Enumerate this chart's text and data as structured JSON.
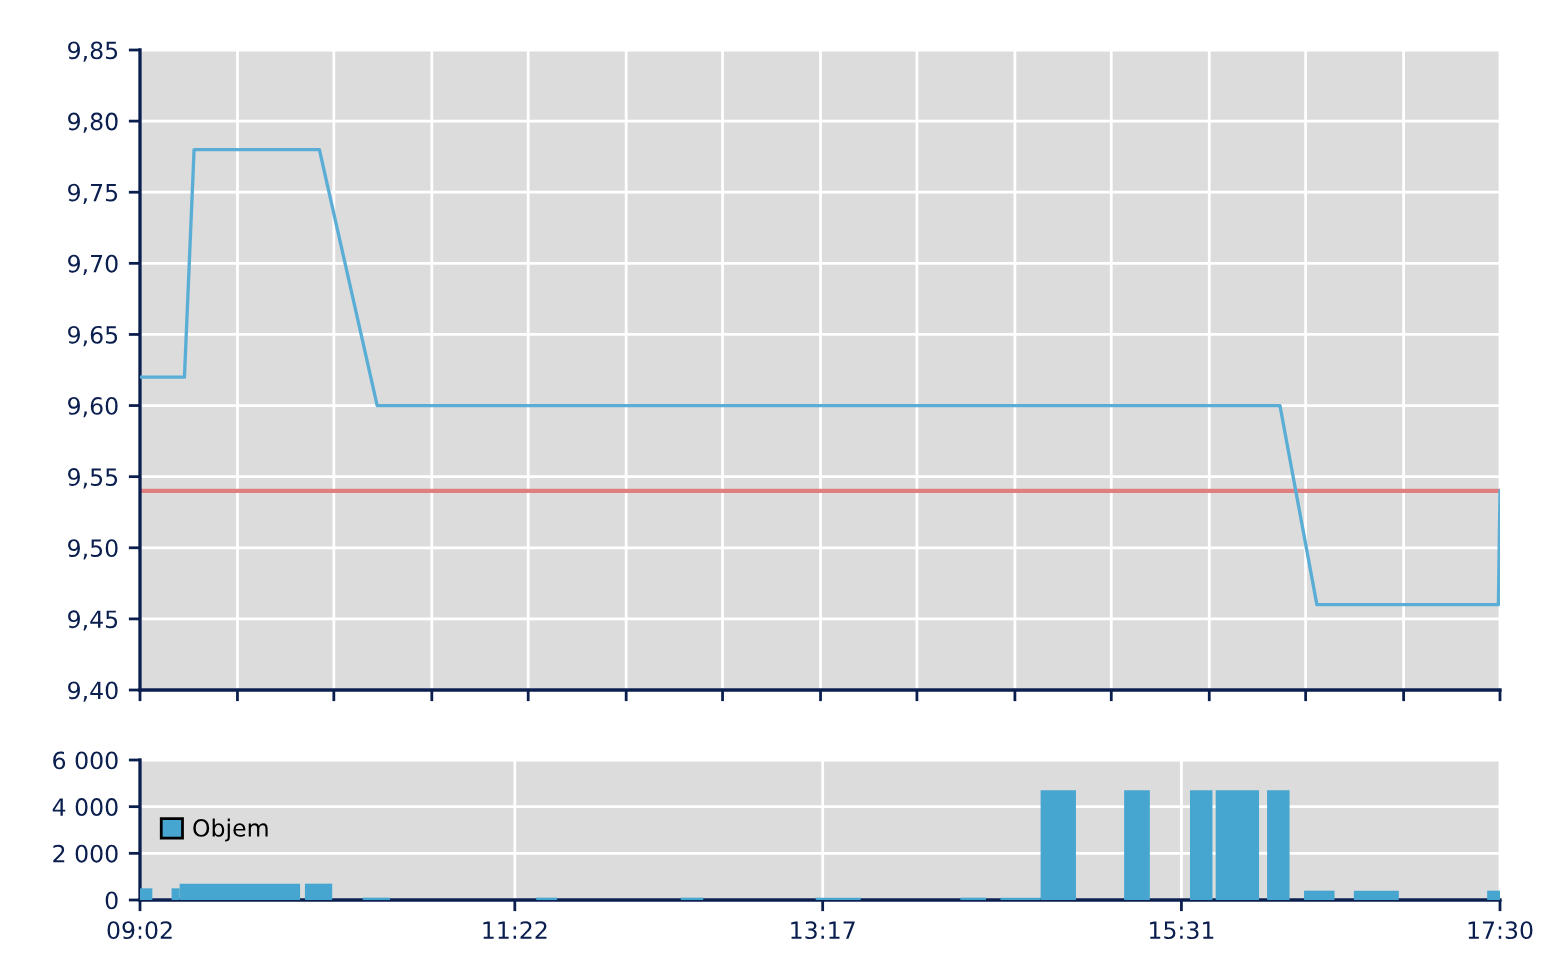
{
  "chart_data": [
    {
      "type": "line",
      "x": [
        9.0333,
        9.31,
        9.37,
        10.15,
        10.51,
        16.13,
        16.36,
        17.49,
        17.5
      ],
      "series": [
        {
          "color": "#5aaed6",
          "values": [
            9.62,
            9.62,
            9.78,
            9.78,
            9.6,
            9.6,
            9.46,
            9.46,
            9.54
          ]
        }
      ],
      "xlim": [
        9.0333,
        17.5
      ],
      "xticks": [
        {
          "value": 9.0333,
          "label": null
        },
        {
          "value": 9.64,
          "label": null
        },
        {
          "value": 10.24,
          "label": null
        },
        {
          "value": 10.85,
          "label": null
        },
        {
          "value": 11.45,
          "label": null
        },
        {
          "value": 12.06,
          "label": null
        },
        {
          "value": 12.66,
          "label": null
        },
        {
          "value": 13.27,
          "label": null
        },
        {
          "value": 13.87,
          "label": null
        },
        {
          "value": 14.48,
          "label": null
        },
        {
          "value": 15.08,
          "label": null
        },
        {
          "value": 15.69,
          "label": null
        },
        {
          "value": 16.29,
          "label": null
        },
        {
          "value": 16.9,
          "label": null
        },
        {
          "value": 17.5,
          "label": null
        }
      ],
      "ylim": [
        9.4,
        9.85
      ],
      "yticks": [
        {
          "value": 9.4,
          "label": "9,40"
        },
        {
          "value": 9.45,
          "label": "9,45"
        },
        {
          "value": 9.5,
          "label": "9,50"
        },
        {
          "value": 9.55,
          "label": "9,55"
        },
        {
          "value": 9.6,
          "label": "9,60"
        },
        {
          "value": 9.65,
          "label": "9,65"
        },
        {
          "value": 9.7,
          "label": "9,70"
        },
        {
          "value": 9.75,
          "label": "9,75"
        },
        {
          "value": 9.8,
          "label": "9,80"
        },
        {
          "value": 9.85,
          "label": "9,85"
        }
      ],
      "grid": true,
      "tick_labels": "y",
      "ref_lines": [
        {
          "axis": "y",
          "value": 9.54,
          "color": "#e07f7f"
        }
      ]
    },
    {
      "type": "histogram",
      "bins": [
        9.0333,
        9.11,
        9.23,
        9.28,
        10.03,
        10.06,
        10.23,
        10.42,
        10.59,
        11.5,
        11.63,
        12.4,
        12.54,
        13.24,
        13.52,
        14.14,
        14.3,
        14.39,
        14.64,
        14.86,
        15.16,
        15.32,
        15.57,
        15.71,
        15.73,
        16.0,
        16.05,
        16.19,
        16.28,
        16.47,
        16.59,
        16.87,
        17.42,
        17.5
      ],
      "series": [
        {
          "name": "Objem",
          "color": "#46a6d0",
          "values": [
            500,
            null,
            500,
            700,
            null,
            700,
            null,
            100,
            null,
            100,
            null,
            100,
            null,
            100,
            null,
            100,
            null,
            100,
            4700,
            null,
            4700,
            null,
            4700,
            null,
            4700,
            null,
            4700,
            null,
            400,
            null,
            400,
            null,
            400
          ]
        }
      ],
      "xlim": [
        9.0333,
        17.5
      ],
      "xticks": [
        {
          "value": 9.0333,
          "label": "09:02"
        },
        {
          "value": 11.3667,
          "label": "11:22"
        },
        {
          "value": 13.2833,
          "label": "13:17"
        },
        {
          "value": 15.5167,
          "label": "15:31"
        },
        {
          "value": 17.5,
          "label": "17:30"
        }
      ],
      "ylim": [
        0,
        6000
      ],
      "yticks": [
        0,
        {
          "value": 2000,
          "label": "2 000"
        },
        {
          "value": 4000,
          "label": "4 000"
        },
        {
          "value": 6000,
          "label": "6 000"
        }
      ],
      "grid": true,
      "legend": "left"
    }
  ]
}
